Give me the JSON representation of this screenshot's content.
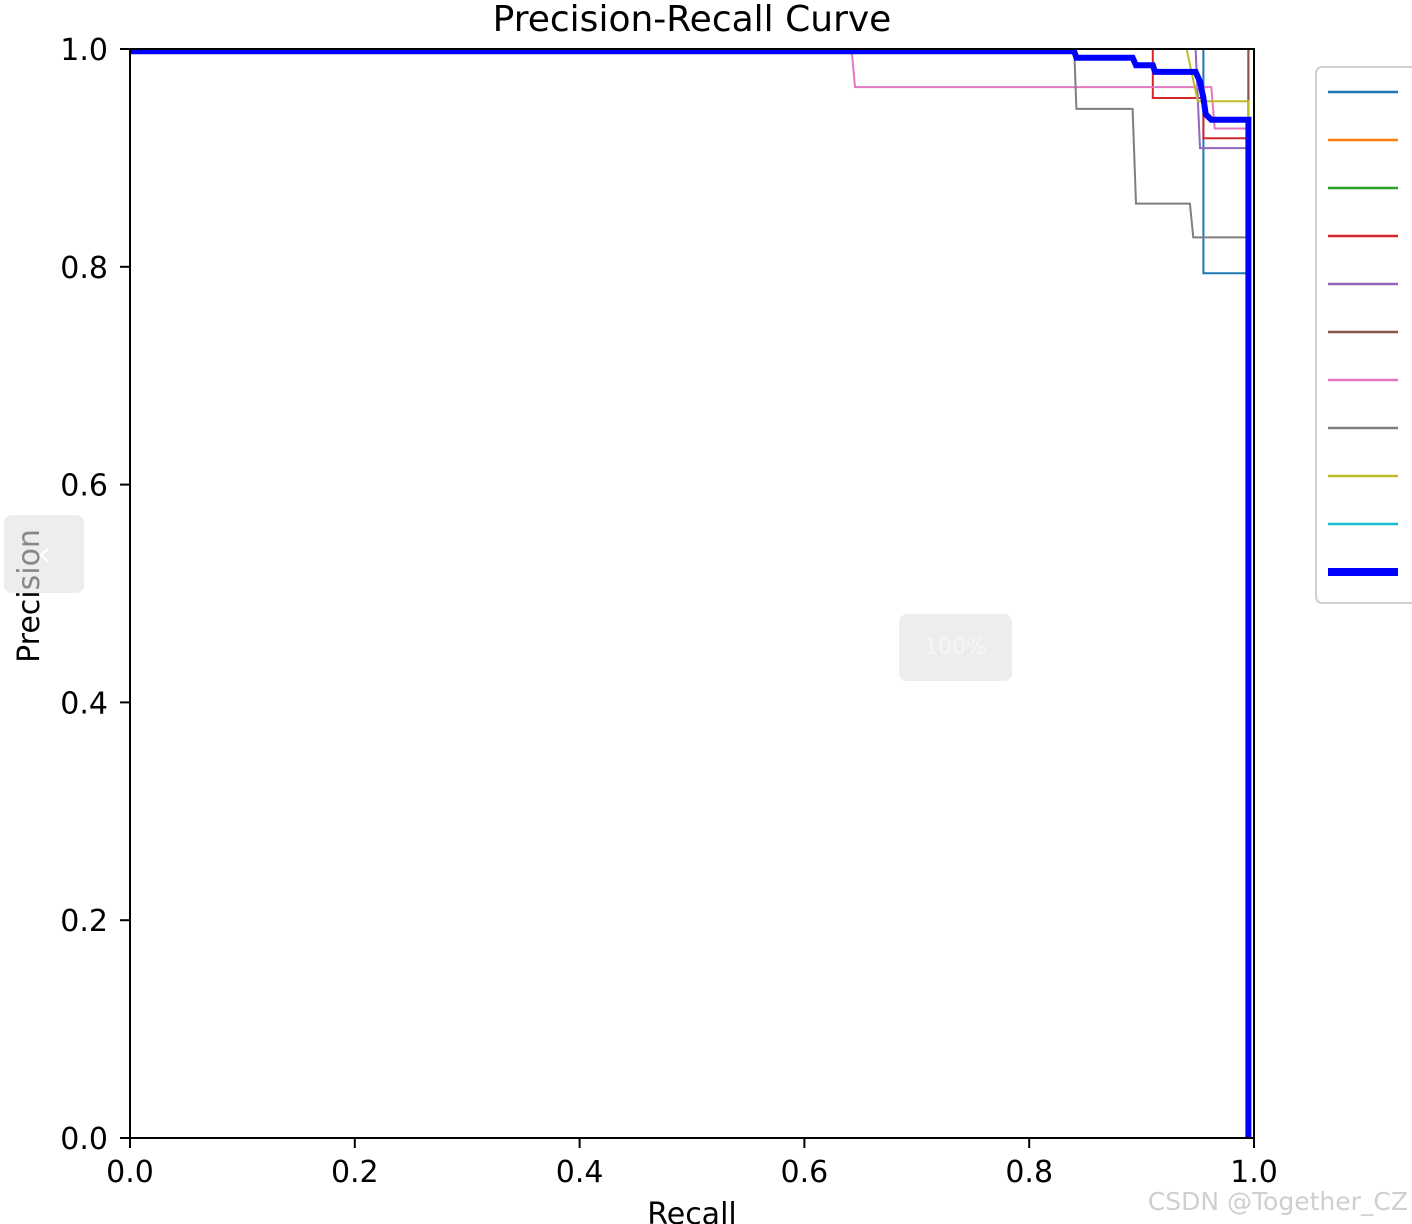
{
  "chart_data": {
    "type": "line",
    "title": "Precision-Recall Curve",
    "xlabel": "Recall",
    "ylabel": "Precision",
    "xlim": [
      0,
      1
    ],
    "ylim": [
      0,
      1
    ],
    "x_ticks": [
      "0.0",
      "0.2",
      "0.4",
      "0.6",
      "0.8",
      "1.0"
    ],
    "y_ticks": [
      "0.0",
      "0.2",
      "0.4",
      "0.6",
      "0.8",
      "1.0"
    ],
    "grid": false,
    "legend_position": "upper-right, outside plot",
    "series": [
      {
        "color": "#1f77b4",
        "width": 2,
        "points": [
          [
            0,
            1
          ],
          [
            0.955,
            1
          ],
          [
            0.955,
            0.794
          ],
          [
            0.995,
            0.794
          ],
          [
            0.995,
            0
          ]
        ]
      },
      {
        "color": "#ff7f0e",
        "width": 2,
        "points": [
          [
            0,
            1
          ],
          [
            0.995,
            1
          ],
          [
            0.995,
            0
          ]
        ]
      },
      {
        "color": "#2ca02c",
        "width": 2,
        "points": [
          [
            0,
            1
          ],
          [
            0.995,
            1
          ],
          [
            0.995,
            0
          ]
        ]
      },
      {
        "color": "#d62728",
        "width": 2,
        "points": [
          [
            0,
            1
          ],
          [
            0.91,
            1
          ],
          [
            0.91,
            0.955
          ],
          [
            0.955,
            0.955
          ],
          [
            0.955,
            0.918
          ],
          [
            0.995,
            0.918
          ],
          [
            0.995,
            0
          ]
        ]
      },
      {
        "color": "#9467bd",
        "width": 2,
        "points": [
          [
            0,
            1
          ],
          [
            0.948,
            1
          ],
          [
            0.952,
            0.909
          ],
          [
            0.995,
            0.909
          ],
          [
            0.995,
            0
          ]
        ]
      },
      {
        "color": "#8c564b",
        "width": 2,
        "points": [
          [
            0,
            1
          ],
          [
            0.995,
            1
          ],
          [
            0.995,
            0
          ]
        ]
      },
      {
        "color": "#e377c2",
        "width": 2,
        "points": [
          [
            0,
            1
          ],
          [
            0.642,
            1
          ],
          [
            0.645,
            0.965
          ],
          [
            0.962,
            0.965
          ],
          [
            0.965,
            0.927
          ],
          [
            0.995,
            0.927
          ],
          [
            0.995,
            0
          ]
        ]
      },
      {
        "color": "#7f7f7f",
        "width": 2,
        "points": [
          [
            0,
            1
          ],
          [
            0.84,
            1
          ],
          [
            0.842,
            0.945
          ],
          [
            0.892,
            0.945
          ],
          [
            0.895,
            0.858
          ],
          [
            0.943,
            0.858
          ],
          [
            0.946,
            0.827
          ],
          [
            0.995,
            0.827
          ],
          [
            0.995,
            0
          ]
        ]
      },
      {
        "color": "#bcbd22",
        "width": 2,
        "points": [
          [
            0,
            1
          ],
          [
            0.94,
            1
          ],
          [
            0.95,
            0.952
          ],
          [
            0.995,
            0.952
          ],
          [
            0.995,
            0
          ]
        ]
      },
      {
        "color": "#17becf",
        "width": 2,
        "points": [
          [
            0,
            1
          ],
          [
            0.96,
            1
          ],
          [
            1,
            1
          ],
          [
            1,
            0
          ]
        ]
      },
      {
        "color": "#0000ff",
        "width": 6,
        "points": [
          [
            0,
            0.998
          ],
          [
            0.64,
            0.998
          ],
          [
            0.84,
            0.998
          ],
          [
            0.842,
            0.992
          ],
          [
            0.892,
            0.992
          ],
          [
            0.895,
            0.985
          ],
          [
            0.91,
            0.985
          ],
          [
            0.912,
            0.979
          ],
          [
            0.948,
            0.979
          ],
          [
            0.952,
            0.97
          ],
          [
            0.955,
            0.955
          ],
          [
            0.957,
            0.94
          ],
          [
            0.962,
            0.935
          ],
          [
            0.995,
            0.935
          ],
          [
            0.995,
            0
          ]
        ]
      }
    ]
  },
  "overlay": {
    "prev_label": "‹",
    "zoom_label": "100%",
    "watermark": "CSDN @Together_CZ"
  }
}
